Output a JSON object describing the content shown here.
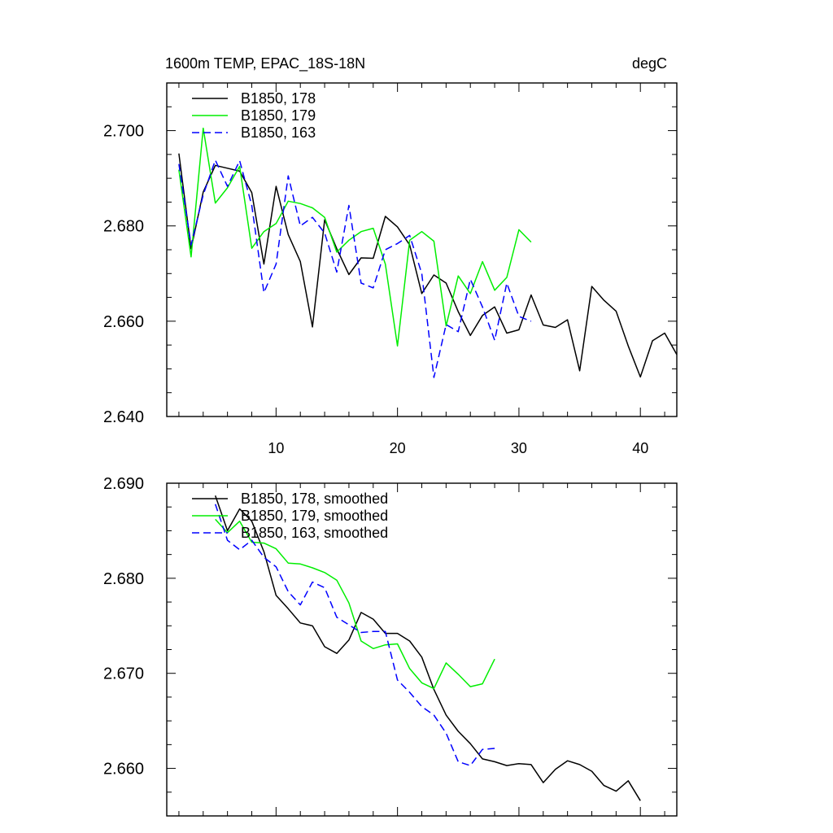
{
  "header": {
    "left_title": "1600m TEMP, EPAC_18S-18N",
    "right_title": "degC"
  },
  "colors": {
    "s178": "#000000",
    "s179": "#00ee00",
    "s163": "#0000ff"
  },
  "chart_data": [
    {
      "type": "line",
      "title": "1600m TEMP, EPAC_18S-18N",
      "units": "degC",
      "xlim": [
        1,
        43
      ],
      "ylim": [
        2.64,
        2.71
      ],
      "xticks": [
        10,
        20,
        30,
        40
      ],
      "xtick_labels": [
        "10",
        "20",
        "30",
        "40"
      ],
      "yticks": [
        2.64,
        2.66,
        2.68,
        2.7
      ],
      "ytick_labels": [
        "2.640",
        "2.660",
        "2.680",
        "2.700"
      ],
      "legend": "top-left",
      "series": [
        {
          "name": "B1850, 178",
          "style": "solid",
          "color": "#000000",
          "x": [
            2,
            3,
            4,
            5,
            6,
            7,
            8,
            9,
            10,
            11,
            12,
            13,
            14,
            15,
            16,
            17,
            18,
            19,
            20,
            21,
            22,
            23,
            24,
            25,
            26,
            27,
            28,
            29,
            30,
            31,
            32,
            33,
            34,
            35,
            36,
            37,
            38,
            39,
            40,
            41,
            42,
            43
          ],
          "values": [
            2.6952,
            2.6752,
            2.6871,
            2.6927,
            2.6921,
            2.6915,
            2.687,
            2.672,
            2.6883,
            2.6782,
            2.6725,
            2.6588,
            2.6813,
            2.6752,
            2.6698,
            2.6733,
            2.6732,
            2.682,
            2.6798,
            2.676,
            2.6658,
            2.6697,
            2.668,
            2.662,
            2.657,
            2.6612,
            2.663,
            2.6575,
            2.6582,
            2.6655,
            2.6592,
            2.6587,
            2.6603,
            2.6496,
            2.6673,
            2.6644,
            2.6621,
            2.6548,
            2.6483,
            2.6559,
            2.6575,
            2.653
          ]
        },
        {
          "name": "B1850, 179",
          "style": "solid",
          "color": "#00ee00",
          "x": [
            2,
            3,
            4,
            5,
            6,
            7,
            8,
            9,
            10,
            11,
            12,
            13,
            14,
            15,
            16,
            17,
            18,
            19,
            20,
            21,
            22,
            23,
            24,
            25,
            26,
            27,
            28,
            29,
            30,
            31
          ],
          "values": [
            2.6918,
            2.6735,
            2.7005,
            2.6848,
            2.688,
            2.6925,
            2.6753,
            2.6788,
            2.6805,
            2.6852,
            2.6847,
            2.6838,
            2.6818,
            2.6745,
            2.677,
            2.6788,
            2.6795,
            2.672,
            2.6548,
            2.677,
            2.6788,
            2.6768,
            2.659,
            2.6695,
            2.6658,
            2.6725,
            2.6665,
            2.6692,
            2.6792,
            2.6766
          ]
        },
        {
          "name": "B1850, 163",
          "style": "dashed",
          "color": "#0000ff",
          "x": [
            2,
            3,
            4,
            5,
            6,
            7,
            8,
            9,
            10,
            11,
            12,
            13,
            14,
            15,
            16,
            17,
            18,
            19,
            20,
            21,
            22,
            23,
            24,
            25,
            26,
            27,
            28,
            29,
            30,
            31
          ],
          "values": [
            2.693,
            2.676,
            2.6865,
            2.6938,
            2.6883,
            2.6937,
            2.6843,
            2.666,
            2.672,
            2.6905,
            2.68,
            2.6818,
            2.6785,
            2.6703,
            2.6843,
            2.668,
            2.667,
            2.675,
            2.6763,
            2.678,
            2.67,
            2.6482,
            2.6593,
            2.6578,
            2.6688,
            2.663,
            2.656,
            2.668,
            2.661,
            2.66
          ]
        }
      ]
    },
    {
      "type": "line",
      "xlim": [
        1,
        43
      ],
      "ylim": [
        2.655,
        2.69
      ],
      "xticks": [
        10,
        20,
        30,
        40
      ],
      "xtick_labels": [
        "",
        "",
        "",
        ""
      ],
      "yticks": [
        2.66,
        2.67,
        2.68,
        2.69
      ],
      "ytick_labels": [
        "2.660",
        "2.670",
        "2.680",
        "2.690"
      ],
      "legend": "top-left",
      "series": [
        {
          "name": "B1850, 178, smoothed",
          "style": "solid",
          "color": "#000000",
          "x": [
            5,
            6,
            7,
            8,
            9,
            10,
            11,
            12,
            13,
            14,
            15,
            16,
            17,
            18,
            19,
            20,
            21,
            22,
            23,
            24,
            25,
            26,
            27,
            28,
            29,
            30,
            31,
            32,
            33,
            34,
            35,
            36,
            37,
            38,
            39,
            40
          ],
          "values": [
            2.6887,
            2.685,
            2.6873,
            2.686,
            2.6828,
            2.6782,
            2.6768,
            2.6753,
            2.675,
            2.6728,
            2.6721,
            2.6735,
            2.6764,
            2.6757,
            2.6742,
            2.6742,
            2.6734,
            2.6717,
            2.6683,
            2.6656,
            2.6639,
            2.6626,
            2.661,
            2.6607,
            2.6603,
            2.6605,
            2.6604,
            2.6585,
            2.6599,
            2.6608,
            2.6604,
            2.6597,
            2.6582,
            2.6576,
            2.6587,
            2.6566
          ]
        },
        {
          "name": "B1850, 179, smoothed",
          "style": "solid",
          "color": "#00ee00",
          "x": [
            5,
            6,
            7,
            8,
            9,
            10,
            11,
            12,
            13,
            14,
            15,
            16,
            17,
            18,
            19,
            20,
            21,
            22,
            23,
            24,
            25,
            26,
            27,
            28
          ],
          "values": [
            2.6862,
            2.6848,
            2.686,
            2.6838,
            2.6837,
            2.6831,
            2.6816,
            2.6815,
            2.6811,
            2.6806,
            2.6798,
            2.6774,
            2.6734,
            2.6726,
            2.673,
            2.6731,
            2.6705,
            2.669,
            2.6684,
            2.6711,
            2.6699,
            2.6686,
            2.6689,
            2.6715
          ]
        },
        {
          "name": "B1850, 163, smoothed",
          "style": "dashed",
          "color": "#0000ff",
          "x": [
            5,
            6,
            7,
            8,
            9,
            10,
            11,
            12,
            13,
            14,
            15,
            16,
            17,
            18,
            19,
            20,
            21,
            22,
            23,
            24,
            25,
            26,
            27,
            28
          ],
          "values": [
            2.6878,
            2.684,
            2.683,
            2.684,
            2.6822,
            2.6812,
            2.6786,
            2.6772,
            2.6796,
            2.679,
            2.6759,
            2.6751,
            2.6743,
            2.6744,
            2.6744,
            2.6693,
            2.668,
            2.6665,
            2.6656,
            2.6637,
            2.6607,
            2.6603,
            2.662,
            2.6621
          ]
        }
      ]
    }
  ]
}
